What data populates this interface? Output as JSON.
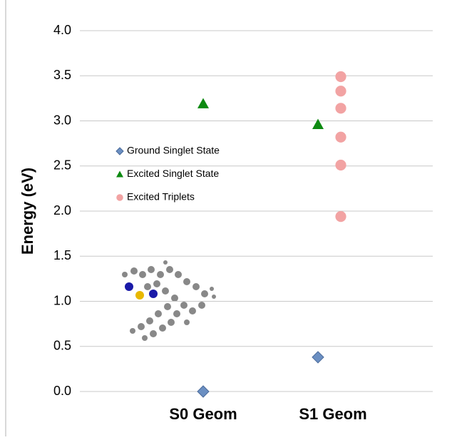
{
  "chart_data": {
    "type": "scatter",
    "categories": [
      "S0 Geom",
      "S1 Geom"
    ],
    "ylabel": "Energy (eV)",
    "ylim": [
      0,
      4
    ],
    "yticks": [
      {
        "value": 0,
        "label": "0.0"
      },
      {
        "value": 0.5,
        "label": "0.5"
      },
      {
        "value": 1,
        "label": "1.0"
      },
      {
        "value": 1.5,
        "label": "1.5"
      },
      {
        "value": 2,
        "label": "2.0"
      },
      {
        "value": 2.5,
        "label": "2.5"
      },
      {
        "value": 3,
        "label": "3.0"
      },
      {
        "value": 3.5,
        "label": "3.5"
      },
      {
        "value": 4,
        "label": "4.0"
      }
    ],
    "grid": true,
    "series": [
      {
        "name": "Ground Singlet State",
        "color": "#6b8fc2",
        "marker": "diamond",
        "values": [
          [
            0.0
          ],
          [
            0.38
          ]
        ]
      },
      {
        "name": "Excited Singlet State",
        "color": "#0e8a12",
        "marker": "triangle",
        "values": [
          [
            3.19
          ],
          [
            2.96
          ]
        ]
      },
      {
        "name": "Excited Triplets",
        "color": "#f2a3a3",
        "marker": "circle",
        "values": [
          [],
          [
            3.49,
            3.33,
            3.14,
            2.82,
            2.51,
            1.94
          ]
        ]
      }
    ]
  }
}
